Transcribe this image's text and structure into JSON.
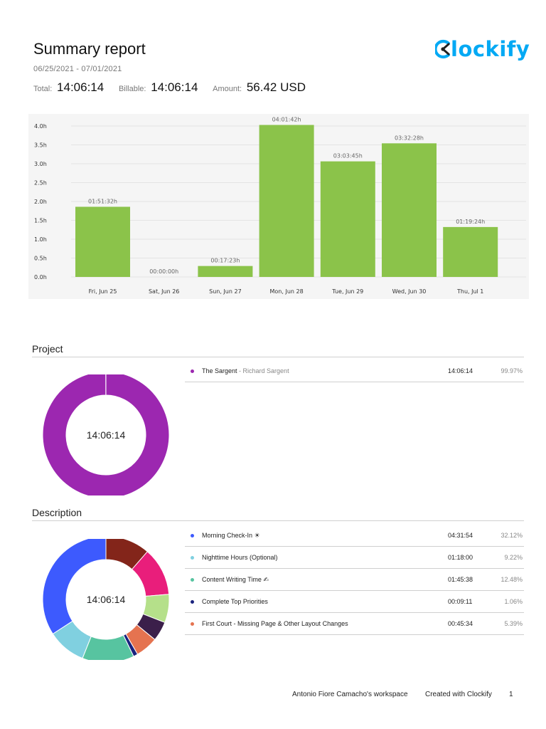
{
  "header": {
    "title": "Summary report",
    "date_range": "06/25/2021 - 07/01/2021",
    "total_label": "Total:",
    "total_value": "14:06:14",
    "billable_label": "Billable:",
    "billable_value": "14:06:14",
    "amount_label": "Amount:",
    "amount_value": "56.42 USD",
    "logo_text": "lockify",
    "logo_icon": "clockify-c-icon",
    "brand_color": "#03a9f4"
  },
  "chart_data": {
    "type": "bar",
    "categories": [
      "Fri, Jun 25",
      "Sat, Jun 26",
      "Sun, Jun 27",
      "Mon, Jun 28",
      "Tue, Jun 29",
      "Wed, Jun 30",
      "Thu, Jul 1"
    ],
    "values": [
      1.859,
      0,
      0.29,
      4.028,
      3.063,
      3.541,
      1.323
    ],
    "data_labels": [
      "01:51:32h",
      "00:00:00h",
      "00:17:23h",
      "04:01:42h",
      "03:03:45h",
      "03:32:28h",
      "01:19:24h"
    ],
    "yticks": [
      "0.0h",
      "0.5h",
      "1.0h",
      "1.5h",
      "2.0h",
      "2.5h",
      "3.0h",
      "3.5h",
      "4.0h"
    ],
    "ylim": [
      0,
      4
    ],
    "bar_color": "#8bc34a",
    "grid": true
  },
  "project": {
    "title": "Project",
    "center_label": "14:06:14",
    "items": [
      {
        "name": "The Sargent",
        "client": " - Richard Sargent",
        "duration": "14:06:14",
        "percent": "99.97%",
        "share": 99.97,
        "color": "#9c27b0"
      }
    ]
  },
  "description": {
    "title": "Description",
    "center_label": "14:06:14",
    "items": [
      {
        "name": "Morning Check-In ☀",
        "duration": "04:31:54",
        "percent": "32.12%",
        "color": "#3d5afe"
      },
      {
        "name": "Nighttime Hours (Optional)",
        "duration": "01:18:00",
        "percent": "9.22%",
        "color": "#80d0e0"
      },
      {
        "name": "Content Writing Time ✍",
        "duration": "01:45:38",
        "percent": "12.48%",
        "color": "#57c4a0"
      },
      {
        "name": "Complete Top Priorities",
        "duration": "00:09:11",
        "percent": "1.06%",
        "color": "#1a237e"
      },
      {
        "name": "First Court - Missing Page & Other Layout Changes",
        "duration": "00:45:34",
        "percent": "5.39%",
        "color": "#e57350"
      }
    ],
    "slices": [
      {
        "share": 10.7,
        "color": "#83251a"
      },
      {
        "share": 11.6,
        "color": "#e91e7b"
      },
      {
        "share": 6.8,
        "color": "#b5e08a"
      },
      {
        "share": 4.7,
        "color": "#3b1f4a"
      },
      {
        "share": 5.39,
        "color": "#e57350"
      },
      {
        "share": 1.06,
        "color": "#1a237e"
      },
      {
        "share": 12.48,
        "color": "#57c4a0"
      },
      {
        "share": 9.22,
        "color": "#80d0e0"
      },
      {
        "share": 32.12,
        "color": "#3d5afe"
      }
    ]
  },
  "footer": {
    "workspace": "Antonio Fiore Camacho's workspace",
    "created_with": "Created with Clockify",
    "page_number": "1"
  }
}
